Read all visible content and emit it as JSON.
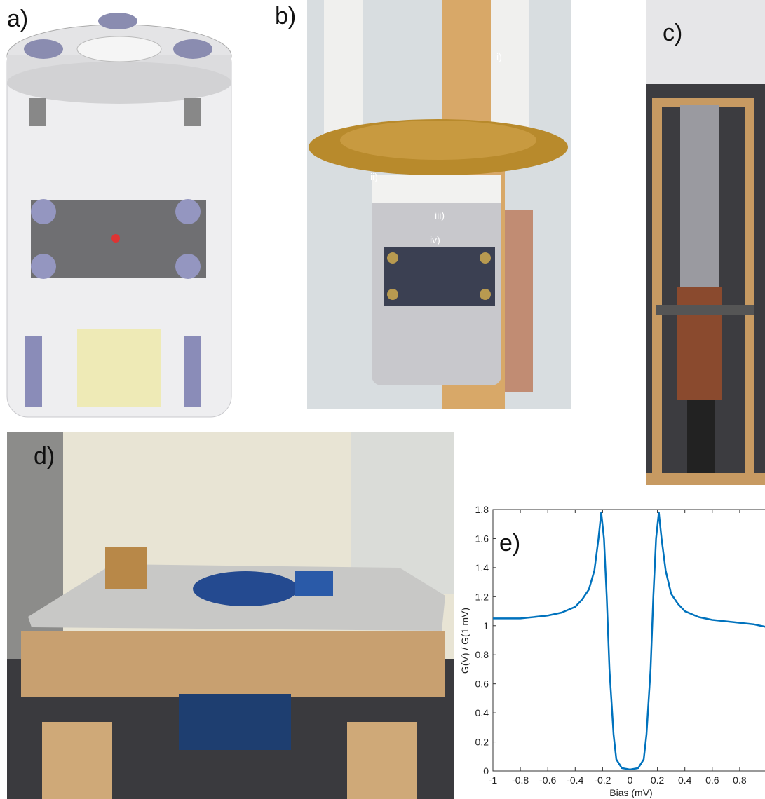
{
  "labels": [
    "a)",
    "b)",
    "c)",
    "d)"
  ],
  "annotations": [
    "i)",
    "ii)",
    "iii)",
    "iv)"
  ],
  "chart_data": {
    "type": "line",
    "panel_label": "e)",
    "xlabel": "Bias (mV)",
    "ylabel": "G(V) / G(1 mV)",
    "x": [
      -1,
      -0.8,
      -0.6,
      -0.5,
      -0.4,
      -0.35,
      -0.3,
      -0.26,
      -0.23,
      -0.21,
      -0.19,
      -0.17,
      -0.15,
      -0.12,
      -0.1,
      -0.06,
      0,
      0.06,
      0.1,
      0.12,
      0.15,
      0.17,
      0.19,
      0.21,
      0.23,
      0.26,
      0.3,
      0.35,
      0.4,
      0.5,
      0.6,
      0.8,
      0.9,
      1
    ],
    "values": [
      1.05,
      1.05,
      1.07,
      1.09,
      1.13,
      1.18,
      1.25,
      1.38,
      1.6,
      1.78,
      1.6,
      1.2,
      0.7,
      0.25,
      0.08,
      0.02,
      0.01,
      0.02,
      0.08,
      0.25,
      0.7,
      1.2,
      1.6,
      1.78,
      1.6,
      1.38,
      1.22,
      1.15,
      1.1,
      1.06,
      1.04,
      1.02,
      1.01,
      0.99
    ],
    "color": "#0072bd",
    "xlim": [
      -1,
      1
    ],
    "ylim": [
      0,
      1.8
    ],
    "xticks": [
      -1,
      -0.8,
      -0.6,
      -0.4,
      -0.2,
      0,
      0.2,
      0.4,
      0.6,
      0.8
    ],
    "yticks": [
      0,
      0.2,
      0.4,
      0.6,
      0.8,
      1,
      1.2,
      1.4,
      1.6,
      1.8
    ]
  }
}
